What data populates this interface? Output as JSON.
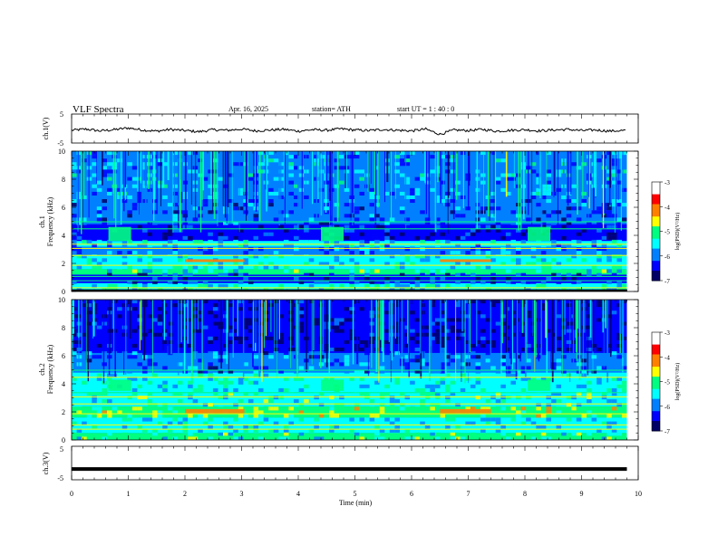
{
  "header": {
    "title": "VLF Spectra",
    "date": "Apr. 16, 2025",
    "station": "station= ATH",
    "start": "start UT =  1 : 40 : 0"
  },
  "colors": {
    "scale": [
      "#000066",
      "#0000ff",
      "#0080ff",
      "#00ffff",
      "#00ff80",
      "#ffff00",
      "#ff8000",
      "#ff0000",
      "#ffffff"
    ]
  },
  "chart_data": [
    {
      "type": "line",
      "panel": "ch1-waveform",
      "xlabel": "",
      "ylabel": "ch.1(V)",
      "xlim": [
        0,
        10
      ],
      "ylim": [
        -5,
        5
      ],
      "yticks": [
        "5",
        "-5"
      ],
      "series": [
        {
          "x": [
            0,
            0.25,
            0.5,
            0.75,
            1,
            1.25,
            1.5,
            1.75,
            2,
            2.25,
            2.5,
            2.75,
            3,
            3.25,
            3.5,
            3.75,
            4,
            4.25,
            4.5,
            4.75,
            5,
            5.25,
            5.5,
            5.75,
            6,
            6.25,
            6.5,
            6.75,
            7,
            7.25,
            7.5,
            7.75,
            8,
            8.25,
            8.5,
            8.75,
            9,
            9.25,
            9.5,
            9.8
          ],
          "y": [
            -0.6,
            -0.2,
            -0.8,
            -0.4,
            0.2,
            -0.5,
            -0.9,
            -0.3,
            -0.7,
            -1.1,
            -0.4,
            -0.6,
            -0.2,
            -0.8,
            -0.5,
            -0.3,
            -0.9,
            -0.4,
            -0.6,
            -0.1,
            -0.5,
            -0.7,
            -0.3,
            -0.6,
            -0.8,
            -0.2,
            -2.0,
            -0.5,
            -0.7,
            -0.3,
            -0.9,
            -0.6,
            -0.4,
            -0.8,
            -0.5,
            -0.3,
            -0.7,
            -0.5,
            -0.9,
            -0.6
          ]
        }
      ]
    },
    {
      "type": "heatmap",
      "panel": "ch1-spectrogram",
      "xlabel": "",
      "ylabel": "ch.1\nFrequency (kHz)",
      "xlim": [
        0,
        10
      ],
      "ylim": [
        0,
        10
      ],
      "yticks": [
        "0",
        "2",
        "4",
        "6",
        "8",
        "10"
      ],
      "colorbar": {
        "label": "log(PSD)(V²/Hz)",
        "range": [
          -7,
          -3
        ],
        "ticks": [
          "-3",
          "-4",
          "-5",
          "-6",
          "-7"
        ]
      },
      "bands": [
        {
          "f": [
            0,
            0.6
          ],
          "level": -5.2
        },
        {
          "f": [
            0.6,
            1.2
          ],
          "level": -6.2
        },
        {
          "f": [
            1.2,
            1.6
          ],
          "level": -5.0
        },
        {
          "f": [
            1.6,
            2.6
          ],
          "level": -5.3
        },
        {
          "f": [
            2.6,
            3.2
          ],
          "level": -5.8
        },
        {
          "f": [
            3.2,
            3.6
          ],
          "level": -5.4
        },
        {
          "f": [
            3.6,
            4.8
          ],
          "level": -6.3
        },
        {
          "f": [
            4.8,
            6.5
          ],
          "level": -6.0
        },
        {
          "f": [
            6.5,
            10
          ],
          "level": -5.6
        }
      ],
      "patches": [
        {
          "t": [
            0.65,
            1.05
          ],
          "f": [
            3.6,
            4.6
          ],
          "level": -5.0
        },
        {
          "t": [
            4.4,
            4.8
          ],
          "f": [
            3.6,
            4.6
          ],
          "level": -5.0
        },
        {
          "t": [
            8.05,
            8.45
          ],
          "f": [
            3.6,
            4.6
          ],
          "level": -5.0
        },
        {
          "t": [
            2.0,
            3.05
          ],
          "f": [
            2.1,
            2.3
          ],
          "level": -3.8
        },
        {
          "t": [
            6.5,
            7.4
          ],
          "f": [
            2.1,
            2.3
          ],
          "level": -3.8
        }
      ]
    },
    {
      "type": "heatmap",
      "panel": "ch2-spectrogram",
      "xlabel": "",
      "ylabel": "ch.2\nFrequency (kHz)",
      "xlim": [
        0,
        10
      ],
      "ylim": [
        0,
        10
      ],
      "yticks": [
        "0",
        "2",
        "4",
        "6",
        "8",
        "10"
      ],
      "colorbar": {
        "label": "log(PSD)(V²/Hz)",
        "range": [
          -7,
          -3
        ],
        "ticks": [
          "-3",
          "-4",
          "-5",
          "-6",
          "-7"
        ]
      },
      "bands": [
        {
          "f": [
            0,
            0.5
          ],
          "level": -5.0
        },
        {
          "f": [
            0.5,
            1.6
          ],
          "level": -5.3
        },
        {
          "f": [
            1.6,
            2.4
          ],
          "level": -4.6
        },
        {
          "f": [
            2.4,
            3.4
          ],
          "level": -5.1
        },
        {
          "f": [
            3.4,
            4.8
          ],
          "level": -5.2
        },
        {
          "f": [
            4.8,
            6.2
          ],
          "level": -5.9
        },
        {
          "f": [
            6.2,
            10
          ],
          "level": -6.5
        }
      ],
      "patches": [
        {
          "t": [
            0.65,
            1.05
          ],
          "f": [
            3.5,
            4.3
          ],
          "level": -4.6
        },
        {
          "t": [
            4.4,
            4.8
          ],
          "f": [
            3.5,
            4.3
          ],
          "level": -4.6
        },
        {
          "t": [
            8.05,
            8.45
          ],
          "f": [
            3.5,
            4.3
          ],
          "level": -4.6
        },
        {
          "t": [
            2.0,
            3.05
          ],
          "f": [
            1.9,
            2.2
          ],
          "level": -3.9
        },
        {
          "t": [
            6.5,
            7.4
          ],
          "f": [
            1.9,
            2.2
          ],
          "level": -3.9
        }
      ]
    },
    {
      "type": "line",
      "panel": "ch3-waveform",
      "xlabel": "Time  (min)",
      "ylabel": "ch.3(V)",
      "xlim": [
        0,
        10
      ],
      "ylim": [
        -5,
        5
      ],
      "yticks": [
        "5",
        "-5"
      ],
      "xticks": [
        "0",
        "1",
        "2",
        "3",
        "4",
        "5",
        "6",
        "7",
        "8",
        "9",
        "10"
      ],
      "series": [
        {
          "x": [
            0,
            9.8
          ],
          "y": [
            -1.8,
            -1.8
          ]
        }
      ]
    }
  ]
}
